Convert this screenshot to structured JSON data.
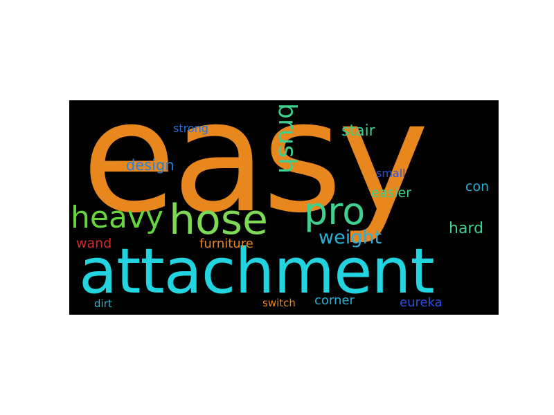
{
  "word_cloud": {
    "words": [
      {
        "text": "easy",
        "color": "#e8871e"
      },
      {
        "text": "attachment",
        "color": "#22d3e0"
      },
      {
        "text": "hose",
        "color": "#7ed957"
      },
      {
        "text": "pro",
        "color": "#3fcf8e"
      },
      {
        "text": "heavy",
        "color": "#66d63c"
      },
      {
        "text": "brush",
        "color": "#3fcf8e"
      },
      {
        "text": "weight",
        "color": "#2ab0d6"
      },
      {
        "text": "design",
        "color": "#2a7fd6"
      },
      {
        "text": "stair",
        "color": "#3fcf8e"
      },
      {
        "text": "strong",
        "color": "#2a6fd6"
      },
      {
        "text": "furniture",
        "color": "#e8871e"
      },
      {
        "text": "wand",
        "color": "#d62a2a"
      },
      {
        "text": "easier",
        "color": "#3fcf8e"
      },
      {
        "text": "small",
        "color": "#2a50d6"
      },
      {
        "text": "con",
        "color": "#2ab0d6"
      },
      {
        "text": "hard",
        "color": "#3fcf8e"
      },
      {
        "text": "corner",
        "color": "#2ab0d6"
      },
      {
        "text": "eureka",
        "color": "#2a50d6"
      },
      {
        "text": "switch",
        "color": "#e8871e"
      },
      {
        "text": "dirt",
        "color": "#2ab0d6"
      }
    ]
  }
}
